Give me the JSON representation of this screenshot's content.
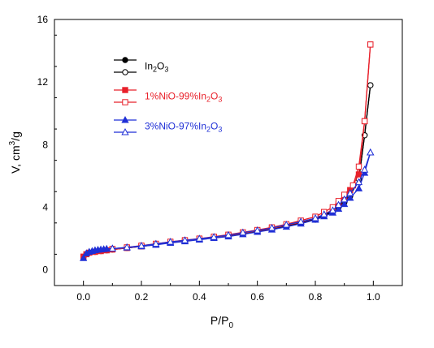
{
  "chart_data": {
    "type": "line",
    "xlabel": "P/P",
    "xlabel_sub": "0",
    "ylabel": "V, cm",
    "ylabel_sup": "3",
    "ylabel_tail": "/g",
    "xlim": [
      -0.1,
      1.1
    ],
    "ylim": [
      -1,
      16
    ],
    "x_ticks": [
      0.0,
      0.2,
      0.4,
      0.6,
      0.8,
      1.0
    ],
    "x_tick_labels": [
      "0.0",
      "0.2",
      "0.4",
      "0.6",
      "0.8",
      "1.0"
    ],
    "y_ticks": [
      0,
      4,
      8,
      12,
      16
    ],
    "y_tick_labels": [
      "0",
      "4",
      "8",
      "12",
      "16"
    ],
    "grid": false,
    "legend_position": "top-left",
    "series": [
      {
        "name": "In2O3 (adsorption)",
        "legend_label": {
          "pre": "In",
          "s1": "2",
          "mid": "O",
          "s2": "3",
          "post": ""
        },
        "show_label": true,
        "color": "#000000",
        "marker": "circle",
        "filled": true,
        "x": [
          0.0,
          0.01,
          0.02,
          0.04,
          0.06,
          0.08,
          0.1,
          0.15,
          0.2,
          0.25,
          0.3,
          0.35,
          0.4,
          0.45,
          0.5,
          0.55,
          0.6,
          0.65,
          0.7,
          0.75,
          0.8,
          0.83,
          0.86,
          0.88,
          0.9,
          0.92,
          0.95,
          0.97,
          0.99
        ],
        "y": [
          0.8,
          1.0,
          1.1,
          1.15,
          1.2,
          1.25,
          1.3,
          1.4,
          1.5,
          1.62,
          1.75,
          1.85,
          1.95,
          2.05,
          2.15,
          2.3,
          2.45,
          2.6,
          2.8,
          3.0,
          3.2,
          3.45,
          3.7,
          4.0,
          4.3,
          4.7,
          5.8,
          8.6,
          11.8
        ]
      },
      {
        "name": "In2O3 (desorption)",
        "show_label": false,
        "color": "#000000",
        "marker": "circle",
        "filled": false,
        "x": [
          0.99,
          0.97,
          0.95,
          0.92,
          0.9,
          0.88,
          0.86,
          0.83,
          0.8,
          0.75,
          0.7,
          0.65,
          0.6,
          0.55,
          0.5,
          0.45,
          0.4,
          0.35,
          0.3,
          0.25,
          0.2,
          0.15,
          0.1
        ],
        "y": [
          11.8,
          8.6,
          5.8,
          4.75,
          4.4,
          4.05,
          3.75,
          3.5,
          3.25,
          3.05,
          2.85,
          2.65,
          2.5,
          2.35,
          2.2,
          2.08,
          1.98,
          1.88,
          1.78,
          1.65,
          1.52,
          1.42,
          1.32
        ]
      },
      {
        "name": "1%NiO-99%In2O3 (adsorption)",
        "legend_label": {
          "pre": "1%NiO-99%In",
          "s1": "2",
          "mid": "O",
          "s2": "3",
          "post": ""
        },
        "show_label": true,
        "color": "#e8202a",
        "marker": "square",
        "filled": true,
        "x": [
          0.0,
          0.01,
          0.02,
          0.04,
          0.06,
          0.08,
          0.1,
          0.15,
          0.2,
          0.25,
          0.3,
          0.35,
          0.4,
          0.45,
          0.5,
          0.55,
          0.6,
          0.65,
          0.7,
          0.75,
          0.8,
          0.83,
          0.86,
          0.88,
          0.9,
          0.92,
          0.95,
          0.97,
          0.99
        ],
        "y": [
          0.85,
          1.0,
          1.1,
          1.15,
          1.2,
          1.25,
          1.3,
          1.4,
          1.5,
          1.62,
          1.75,
          1.85,
          1.97,
          2.08,
          2.2,
          2.35,
          2.5,
          2.65,
          2.85,
          3.05,
          3.3,
          3.55,
          3.85,
          4.2,
          4.6,
          5.1,
          6.1,
          9.5,
          14.4
        ]
      },
      {
        "name": "1%NiO-99%In2O3 (desorption)",
        "show_label": false,
        "color": "#e8202a",
        "marker": "square",
        "filled": false,
        "x": [
          0.99,
          0.97,
          0.95,
          0.93,
          0.9,
          0.88,
          0.86,
          0.83,
          0.8,
          0.75,
          0.7,
          0.65,
          0.6,
          0.55,
          0.5,
          0.45,
          0.4,
          0.35,
          0.3,
          0.25,
          0.2,
          0.15,
          0.1
        ],
        "y": [
          14.4,
          9.5,
          6.6,
          5.4,
          4.8,
          4.4,
          4.0,
          3.7,
          3.4,
          3.15,
          2.92,
          2.72,
          2.55,
          2.4,
          2.25,
          2.12,
          2.0,
          1.9,
          1.8,
          1.67,
          1.55,
          1.44,
          1.34
        ]
      },
      {
        "name": "3%NiO-97%In2O3 (adsorption)",
        "legend_label": {
          "pre": "3%NiO-97%In",
          "s1": "2",
          "mid": "O",
          "s2": "3",
          "post": ""
        },
        "show_label": true,
        "color": "#1f2fd6",
        "marker": "triangle",
        "filled": true,
        "x": [
          0.0,
          0.01,
          0.02,
          0.03,
          0.04,
          0.05,
          0.06,
          0.07,
          0.08,
          0.1,
          0.15,
          0.2,
          0.25,
          0.3,
          0.35,
          0.4,
          0.45,
          0.5,
          0.55,
          0.6,
          0.65,
          0.7,
          0.75,
          0.8,
          0.83,
          0.86,
          0.88,
          0.9,
          0.92,
          0.95,
          0.97,
          0.99
        ],
        "y": [
          0.75,
          1.05,
          1.15,
          1.2,
          1.25,
          1.28,
          1.3,
          1.32,
          1.34,
          1.36,
          1.42,
          1.5,
          1.6,
          1.72,
          1.82,
          1.93,
          2.03,
          2.13,
          2.27,
          2.42,
          2.57,
          2.75,
          2.95,
          3.2,
          3.42,
          3.65,
          3.9,
          4.2,
          4.6,
          5.2,
          6.2,
          7.5
        ]
      },
      {
        "name": "3%NiO-97%In2O3 (desorption)",
        "show_label": false,
        "color": "#1f2fd6",
        "marker": "triangle",
        "filled": false,
        "x": [
          0.99,
          0.97,
          0.95,
          0.92,
          0.9,
          0.88,
          0.86,
          0.83,
          0.8,
          0.75,
          0.7,
          0.65,
          0.6,
          0.55,
          0.5,
          0.45,
          0.4,
          0.35,
          0.3,
          0.25,
          0.2,
          0.15,
          0.1
        ],
        "y": [
          7.5,
          6.4,
          5.6,
          4.9,
          4.5,
          4.15,
          3.8,
          3.55,
          3.3,
          3.08,
          2.88,
          2.68,
          2.52,
          2.38,
          2.22,
          2.1,
          1.99,
          1.89,
          1.79,
          1.66,
          1.54,
          1.44,
          1.36
        ]
      }
    ]
  }
}
